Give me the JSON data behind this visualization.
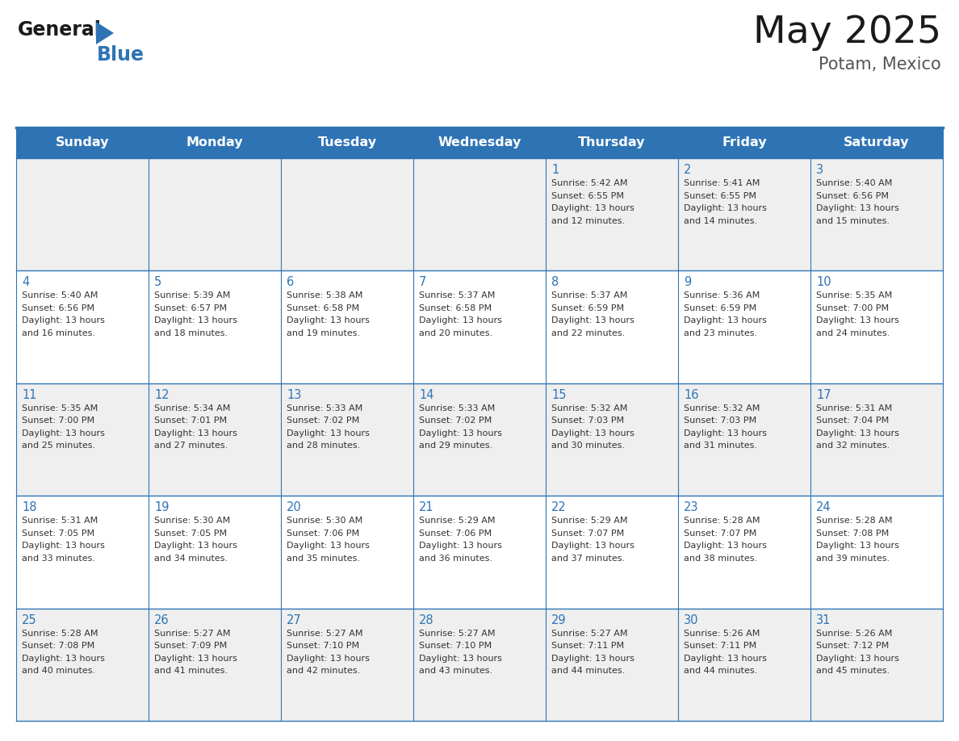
{
  "title": "May 2025",
  "subtitle": "Potam, Mexico",
  "days_of_week": [
    "Sunday",
    "Monday",
    "Tuesday",
    "Wednesday",
    "Thursday",
    "Friday",
    "Saturday"
  ],
  "header_bg": "#2E74B5",
  "header_text": "#FFFFFF",
  "cell_bg_light": "#EFEFEF",
  "cell_bg_white": "#FFFFFF",
  "border_color": "#2E74B5",
  "text_color": "#333333",
  "day_number_color": "#2E74B5",
  "title_color": "#1A1A1A",
  "calendar_data": [
    [
      {
        "day": "",
        "sunrise": "",
        "sunset": "",
        "daylight": ""
      },
      {
        "day": "",
        "sunrise": "",
        "sunset": "",
        "daylight": ""
      },
      {
        "day": "",
        "sunrise": "",
        "sunset": "",
        "daylight": ""
      },
      {
        "day": "",
        "sunrise": "",
        "sunset": "",
        "daylight": ""
      },
      {
        "day": "1",
        "sunrise": "Sunrise: 5:42 AM",
        "sunset": "Sunset: 6:55 PM",
        "daylight": "Daylight: 13 hours and 12 minutes."
      },
      {
        "day": "2",
        "sunrise": "Sunrise: 5:41 AM",
        "sunset": "Sunset: 6:55 PM",
        "daylight": "Daylight: 13 hours and 14 minutes."
      },
      {
        "day": "3",
        "sunrise": "Sunrise: 5:40 AM",
        "sunset": "Sunset: 6:56 PM",
        "daylight": "Daylight: 13 hours and 15 minutes."
      }
    ],
    [
      {
        "day": "4",
        "sunrise": "Sunrise: 5:40 AM",
        "sunset": "Sunset: 6:56 PM",
        "daylight": "Daylight: 13 hours and 16 minutes."
      },
      {
        "day": "5",
        "sunrise": "Sunrise: 5:39 AM",
        "sunset": "Sunset: 6:57 PM",
        "daylight": "Daylight: 13 hours and 18 minutes."
      },
      {
        "day": "6",
        "sunrise": "Sunrise: 5:38 AM",
        "sunset": "Sunset: 6:58 PM",
        "daylight": "Daylight: 13 hours and 19 minutes."
      },
      {
        "day": "7",
        "sunrise": "Sunrise: 5:37 AM",
        "sunset": "Sunset: 6:58 PM",
        "daylight": "Daylight: 13 hours and 20 minutes."
      },
      {
        "day": "8",
        "sunrise": "Sunrise: 5:37 AM",
        "sunset": "Sunset: 6:59 PM",
        "daylight": "Daylight: 13 hours and 22 minutes."
      },
      {
        "day": "9",
        "sunrise": "Sunrise: 5:36 AM",
        "sunset": "Sunset: 6:59 PM",
        "daylight": "Daylight: 13 hours and 23 minutes."
      },
      {
        "day": "10",
        "sunrise": "Sunrise: 5:35 AM",
        "sunset": "Sunset: 7:00 PM",
        "daylight": "Daylight: 13 hours and 24 minutes."
      }
    ],
    [
      {
        "day": "11",
        "sunrise": "Sunrise: 5:35 AM",
        "sunset": "Sunset: 7:00 PM",
        "daylight": "Daylight: 13 hours and 25 minutes."
      },
      {
        "day": "12",
        "sunrise": "Sunrise: 5:34 AM",
        "sunset": "Sunset: 7:01 PM",
        "daylight": "Daylight: 13 hours and 27 minutes."
      },
      {
        "day": "13",
        "sunrise": "Sunrise: 5:33 AM",
        "sunset": "Sunset: 7:02 PM",
        "daylight": "Daylight: 13 hours and 28 minutes."
      },
      {
        "day": "14",
        "sunrise": "Sunrise: 5:33 AM",
        "sunset": "Sunset: 7:02 PM",
        "daylight": "Daylight: 13 hours and 29 minutes."
      },
      {
        "day": "15",
        "sunrise": "Sunrise: 5:32 AM",
        "sunset": "Sunset: 7:03 PM",
        "daylight": "Daylight: 13 hours and 30 minutes."
      },
      {
        "day": "16",
        "sunrise": "Sunrise: 5:32 AM",
        "sunset": "Sunset: 7:03 PM",
        "daylight": "Daylight: 13 hours and 31 minutes."
      },
      {
        "day": "17",
        "sunrise": "Sunrise: 5:31 AM",
        "sunset": "Sunset: 7:04 PM",
        "daylight": "Daylight: 13 hours and 32 minutes."
      }
    ],
    [
      {
        "day": "18",
        "sunrise": "Sunrise: 5:31 AM",
        "sunset": "Sunset: 7:05 PM",
        "daylight": "Daylight: 13 hours and 33 minutes."
      },
      {
        "day": "19",
        "sunrise": "Sunrise: 5:30 AM",
        "sunset": "Sunset: 7:05 PM",
        "daylight": "Daylight: 13 hours and 34 minutes."
      },
      {
        "day": "20",
        "sunrise": "Sunrise: 5:30 AM",
        "sunset": "Sunset: 7:06 PM",
        "daylight": "Daylight: 13 hours and 35 minutes."
      },
      {
        "day": "21",
        "sunrise": "Sunrise: 5:29 AM",
        "sunset": "Sunset: 7:06 PM",
        "daylight": "Daylight: 13 hours and 36 minutes."
      },
      {
        "day": "22",
        "sunrise": "Sunrise: 5:29 AM",
        "sunset": "Sunset: 7:07 PM",
        "daylight": "Daylight: 13 hours and 37 minutes."
      },
      {
        "day": "23",
        "sunrise": "Sunrise: 5:28 AM",
        "sunset": "Sunset: 7:07 PM",
        "daylight": "Daylight: 13 hours and 38 minutes."
      },
      {
        "day": "24",
        "sunrise": "Sunrise: 5:28 AM",
        "sunset": "Sunset: 7:08 PM",
        "daylight": "Daylight: 13 hours and 39 minutes."
      }
    ],
    [
      {
        "day": "25",
        "sunrise": "Sunrise: 5:28 AM",
        "sunset": "Sunset: 7:08 PM",
        "daylight": "Daylight: 13 hours and 40 minutes."
      },
      {
        "day": "26",
        "sunrise": "Sunrise: 5:27 AM",
        "sunset": "Sunset: 7:09 PM",
        "daylight": "Daylight: 13 hours and 41 minutes."
      },
      {
        "day": "27",
        "sunrise": "Sunrise: 5:27 AM",
        "sunset": "Sunset: 7:10 PM",
        "daylight": "Daylight: 13 hours and 42 minutes."
      },
      {
        "day": "28",
        "sunrise": "Sunrise: 5:27 AM",
        "sunset": "Sunset: 7:10 PM",
        "daylight": "Daylight: 13 hours and 43 minutes."
      },
      {
        "day": "29",
        "sunrise": "Sunrise: 5:27 AM",
        "sunset": "Sunset: 7:11 PM",
        "daylight": "Daylight: 13 hours and 44 minutes."
      },
      {
        "day": "30",
        "sunrise": "Sunrise: 5:26 AM",
        "sunset": "Sunset: 7:11 PM",
        "daylight": "Daylight: 13 hours and 44 minutes."
      },
      {
        "day": "31",
        "sunrise": "Sunrise: 5:26 AM",
        "sunset": "Sunset: 7:12 PM",
        "daylight": "Daylight: 13 hours and 45 minutes."
      }
    ]
  ],
  "logo_text_general": "General",
  "logo_text_blue": "Blue",
  "logo_triangle_color": "#2E74B5",
  "fig_width": 11.88,
  "fig_height": 9.18,
  "dpi": 100
}
